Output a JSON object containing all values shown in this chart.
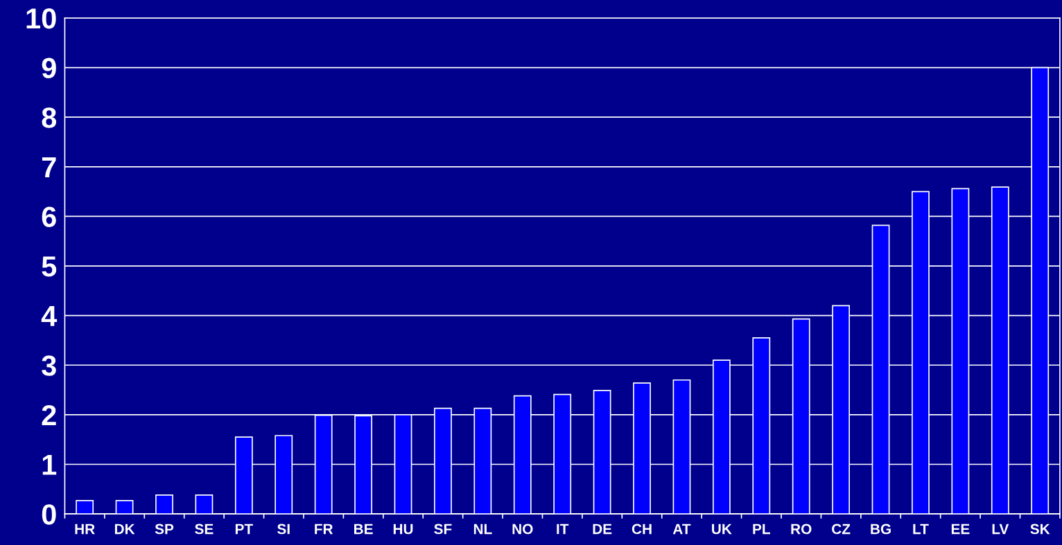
{
  "chart_data": {
    "type": "bar",
    "categories": [
      "HR",
      "DK",
      "SP",
      "SE",
      "PT",
      "SI",
      "FR",
      "BE",
      "HU",
      "SF",
      "NL",
      "NO",
      "IT",
      "DE",
      "CH",
      "AT",
      "UK",
      "PL",
      "RO",
      "CZ",
      "BG",
      "LT",
      "EE",
      "LV",
      "SK"
    ],
    "values": [
      0.27,
      0.27,
      0.38,
      0.38,
      1.55,
      1.58,
      1.99,
      1.98,
      2.0,
      2.13,
      2.13,
      2.38,
      2.41,
      2.49,
      2.64,
      2.7,
      3.1,
      3.55,
      3.93,
      4.2,
      5.82,
      6.5,
      6.56,
      6.59,
      9.0
    ],
    "color": "#0000ff",
    "ylim": [
      0,
      10
    ],
    "yticks": [
      0,
      1,
      2,
      3,
      4,
      5,
      6,
      7,
      8,
      9,
      10
    ],
    "grid": "y"
  }
}
